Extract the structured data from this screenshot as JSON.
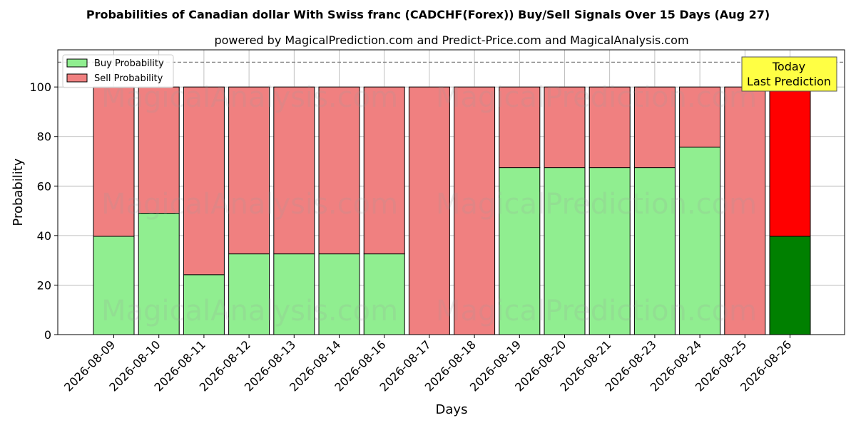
{
  "chart_data": {
    "type": "bar",
    "stacked": true,
    "title": "Probabilities of Canadian dollar With Swiss franc (CADCHF(Forex)) Buy/Sell Signals Over 15 Days (Aug 27)",
    "subtitle": "powered by MagicalPrediction.com and Predict-Price.com and MagicalAnalysis.com",
    "xlabel": "Days",
    "ylabel": "Probability",
    "ylim": [
      0,
      115
    ],
    "yticks": [
      0,
      20,
      40,
      60,
      80,
      100
    ],
    "reference_line": 110,
    "grid": true,
    "legend_position": "top-left",
    "categories": [
      "2026-08-09",
      "2026-08-10",
      "2026-08-11",
      "2026-08-12",
      "2026-08-13",
      "2026-08-14",
      "2026-08-16",
      "2026-08-17",
      "2026-08-18",
      "2026-08-19",
      "2026-08-20",
      "2026-08-21",
      "2026-08-23",
      "2026-08-24",
      "2026-08-25",
      "2026-08-26"
    ],
    "series": [
      {
        "name": "Buy Probability",
        "color": "#90ee90",
        "highlight_color": "#008000",
        "values": [
          39.7,
          49.0,
          24.2,
          32.6,
          32.6,
          32.6,
          32.6,
          0,
          0,
          67.4,
          67.4,
          67.4,
          67.4,
          75.7,
          0,
          39.7
        ]
      },
      {
        "name": "Sell Probability",
        "color": "#f08080",
        "highlight_color": "#ff0000",
        "values": [
          60.3,
          51.0,
          75.8,
          67.4,
          67.4,
          67.4,
          67.4,
          100,
          100,
          32.6,
          32.6,
          32.6,
          32.6,
          24.3,
          100,
          60.3
        ]
      }
    ],
    "highlight_index": 15,
    "annotation": {
      "line1": "Today",
      "line2": "Last Prediction",
      "color": "#ffff44"
    },
    "watermarks": [
      "MagicalAnalysis.com",
      "MagicalPrediction.com"
    ]
  }
}
